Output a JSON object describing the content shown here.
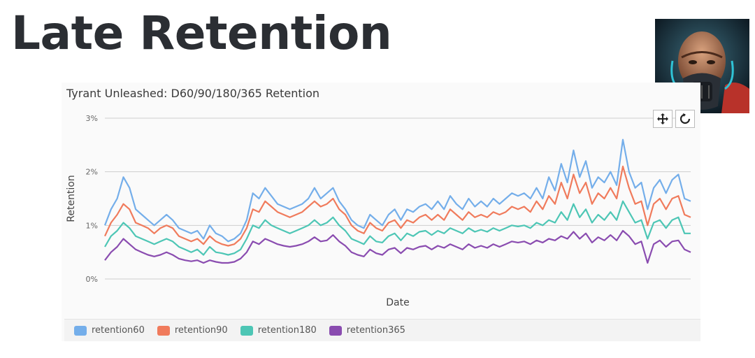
{
  "slide": {
    "title": "Late Retention"
  },
  "chart_data": {
    "type": "line",
    "title": "Tyrant Unleashed: D60/90/180/365 Retention",
    "xlabel": "Date",
    "ylabel": "Retention",
    "ylim": [
      0,
      3
    ],
    "yticks": [
      "0%",
      "1%",
      "2%",
      "3%"
    ],
    "grid": true,
    "legend_position": "bottom",
    "series": [
      {
        "name": "retention60",
        "color": "#74aeea",
        "values": [
          1.0,
          1.3,
          1.5,
          1.9,
          1.7,
          1.3,
          1.2,
          1.1,
          1.0,
          1.1,
          1.2,
          1.1,
          0.95,
          0.9,
          0.85,
          0.9,
          0.75,
          1.0,
          0.85,
          0.8,
          0.7,
          0.75,
          0.85,
          1.1,
          1.6,
          1.5,
          1.7,
          1.55,
          1.4,
          1.35,
          1.3,
          1.35,
          1.4,
          1.5,
          1.7,
          1.5,
          1.6,
          1.7,
          1.45,
          1.3,
          1.1,
          1.0,
          0.95,
          1.2,
          1.1,
          1.0,
          1.2,
          1.3,
          1.1,
          1.3,
          1.25,
          1.35,
          1.4,
          1.3,
          1.45,
          1.3,
          1.55,
          1.4,
          1.3,
          1.5,
          1.35,
          1.45,
          1.35,
          1.5,
          1.4,
          1.5,
          1.6,
          1.55,
          1.6,
          1.5,
          1.7,
          1.5,
          1.9,
          1.65,
          2.15,
          1.8,
          2.4,
          1.9,
          2.2,
          1.7,
          1.9,
          1.8,
          2.0,
          1.75,
          2.6,
          2.0,
          1.7,
          1.8,
          1.3,
          1.7,
          1.85,
          1.6,
          1.85,
          1.95,
          1.5,
          1.45
        ]
      },
      {
        "name": "retention90",
        "color": "#f07b5c",
        "values": [
          0.8,
          1.05,
          1.2,
          1.4,
          1.3,
          1.05,
          1.0,
          0.95,
          0.85,
          0.95,
          1.0,
          0.95,
          0.8,
          0.75,
          0.7,
          0.75,
          0.65,
          0.8,
          0.7,
          0.65,
          0.62,
          0.65,
          0.75,
          0.95,
          1.3,
          1.25,
          1.45,
          1.35,
          1.25,
          1.2,
          1.15,
          1.2,
          1.25,
          1.35,
          1.45,
          1.35,
          1.4,
          1.5,
          1.3,
          1.2,
          1.0,
          0.9,
          0.85,
          1.05,
          0.95,
          0.9,
          1.05,
          1.1,
          0.95,
          1.1,
          1.05,
          1.15,
          1.2,
          1.1,
          1.2,
          1.1,
          1.3,
          1.2,
          1.1,
          1.25,
          1.15,
          1.2,
          1.15,
          1.25,
          1.2,
          1.25,
          1.35,
          1.3,
          1.35,
          1.25,
          1.45,
          1.3,
          1.55,
          1.4,
          1.8,
          1.5,
          1.95,
          1.6,
          1.8,
          1.4,
          1.6,
          1.5,
          1.7,
          1.5,
          2.1,
          1.7,
          1.4,
          1.45,
          1.0,
          1.4,
          1.5,
          1.3,
          1.5,
          1.55,
          1.2,
          1.15
        ]
      },
      {
        "name": "retention180",
        "color": "#4dc6b5",
        "values": [
          0.6,
          0.8,
          0.9,
          1.05,
          0.95,
          0.8,
          0.75,
          0.7,
          0.65,
          0.7,
          0.75,
          0.7,
          0.6,
          0.55,
          0.5,
          0.55,
          0.45,
          0.6,
          0.5,
          0.48,
          0.45,
          0.48,
          0.55,
          0.75,
          1.0,
          0.95,
          1.1,
          1.0,
          0.95,
          0.9,
          0.85,
          0.9,
          0.95,
          1.0,
          1.1,
          1.0,
          1.05,
          1.15,
          1.0,
          0.9,
          0.75,
          0.7,
          0.65,
          0.8,
          0.7,
          0.68,
          0.8,
          0.85,
          0.72,
          0.85,
          0.8,
          0.88,
          0.9,
          0.82,
          0.9,
          0.85,
          0.95,
          0.9,
          0.85,
          0.95,
          0.88,
          0.92,
          0.88,
          0.95,
          0.9,
          0.95,
          1.0,
          0.98,
          1.0,
          0.95,
          1.05,
          1.0,
          1.1,
          1.05,
          1.25,
          1.1,
          1.4,
          1.15,
          1.3,
          1.05,
          1.2,
          1.1,
          1.25,
          1.1,
          1.45,
          1.25,
          1.05,
          1.1,
          0.75,
          1.05,
          1.1,
          0.95,
          1.1,
          1.15,
          0.85,
          0.85
        ]
      },
      {
        "name": "retention365",
        "color": "#8a4cb0",
        "values": [
          0.35,
          0.5,
          0.6,
          0.75,
          0.65,
          0.55,
          0.5,
          0.45,
          0.42,
          0.45,
          0.5,
          0.45,
          0.38,
          0.35,
          0.33,
          0.35,
          0.3,
          0.35,
          0.32,
          0.3,
          0.3,
          0.32,
          0.38,
          0.5,
          0.7,
          0.65,
          0.75,
          0.7,
          0.65,
          0.62,
          0.6,
          0.62,
          0.65,
          0.7,
          0.78,
          0.7,
          0.72,
          0.82,
          0.7,
          0.62,
          0.5,
          0.45,
          0.42,
          0.55,
          0.48,
          0.45,
          0.55,
          0.58,
          0.48,
          0.58,
          0.55,
          0.6,
          0.62,
          0.55,
          0.62,
          0.58,
          0.65,
          0.6,
          0.55,
          0.65,
          0.58,
          0.62,
          0.58,
          0.65,
          0.6,
          0.65,
          0.7,
          0.68,
          0.7,
          0.65,
          0.72,
          0.68,
          0.75,
          0.72,
          0.8,
          0.75,
          0.88,
          0.75,
          0.85,
          0.68,
          0.78,
          0.72,
          0.82,
          0.72,
          0.9,
          0.8,
          0.65,
          0.7,
          0.3,
          0.65,
          0.72,
          0.6,
          0.7,
          0.72,
          0.55,
          0.5
        ]
      }
    ]
  },
  "toolbar": {
    "move_icon": "move-arrows-icon",
    "reset_icon": "refresh-icon"
  },
  "avatar": {
    "icon": "character-portrait"
  }
}
